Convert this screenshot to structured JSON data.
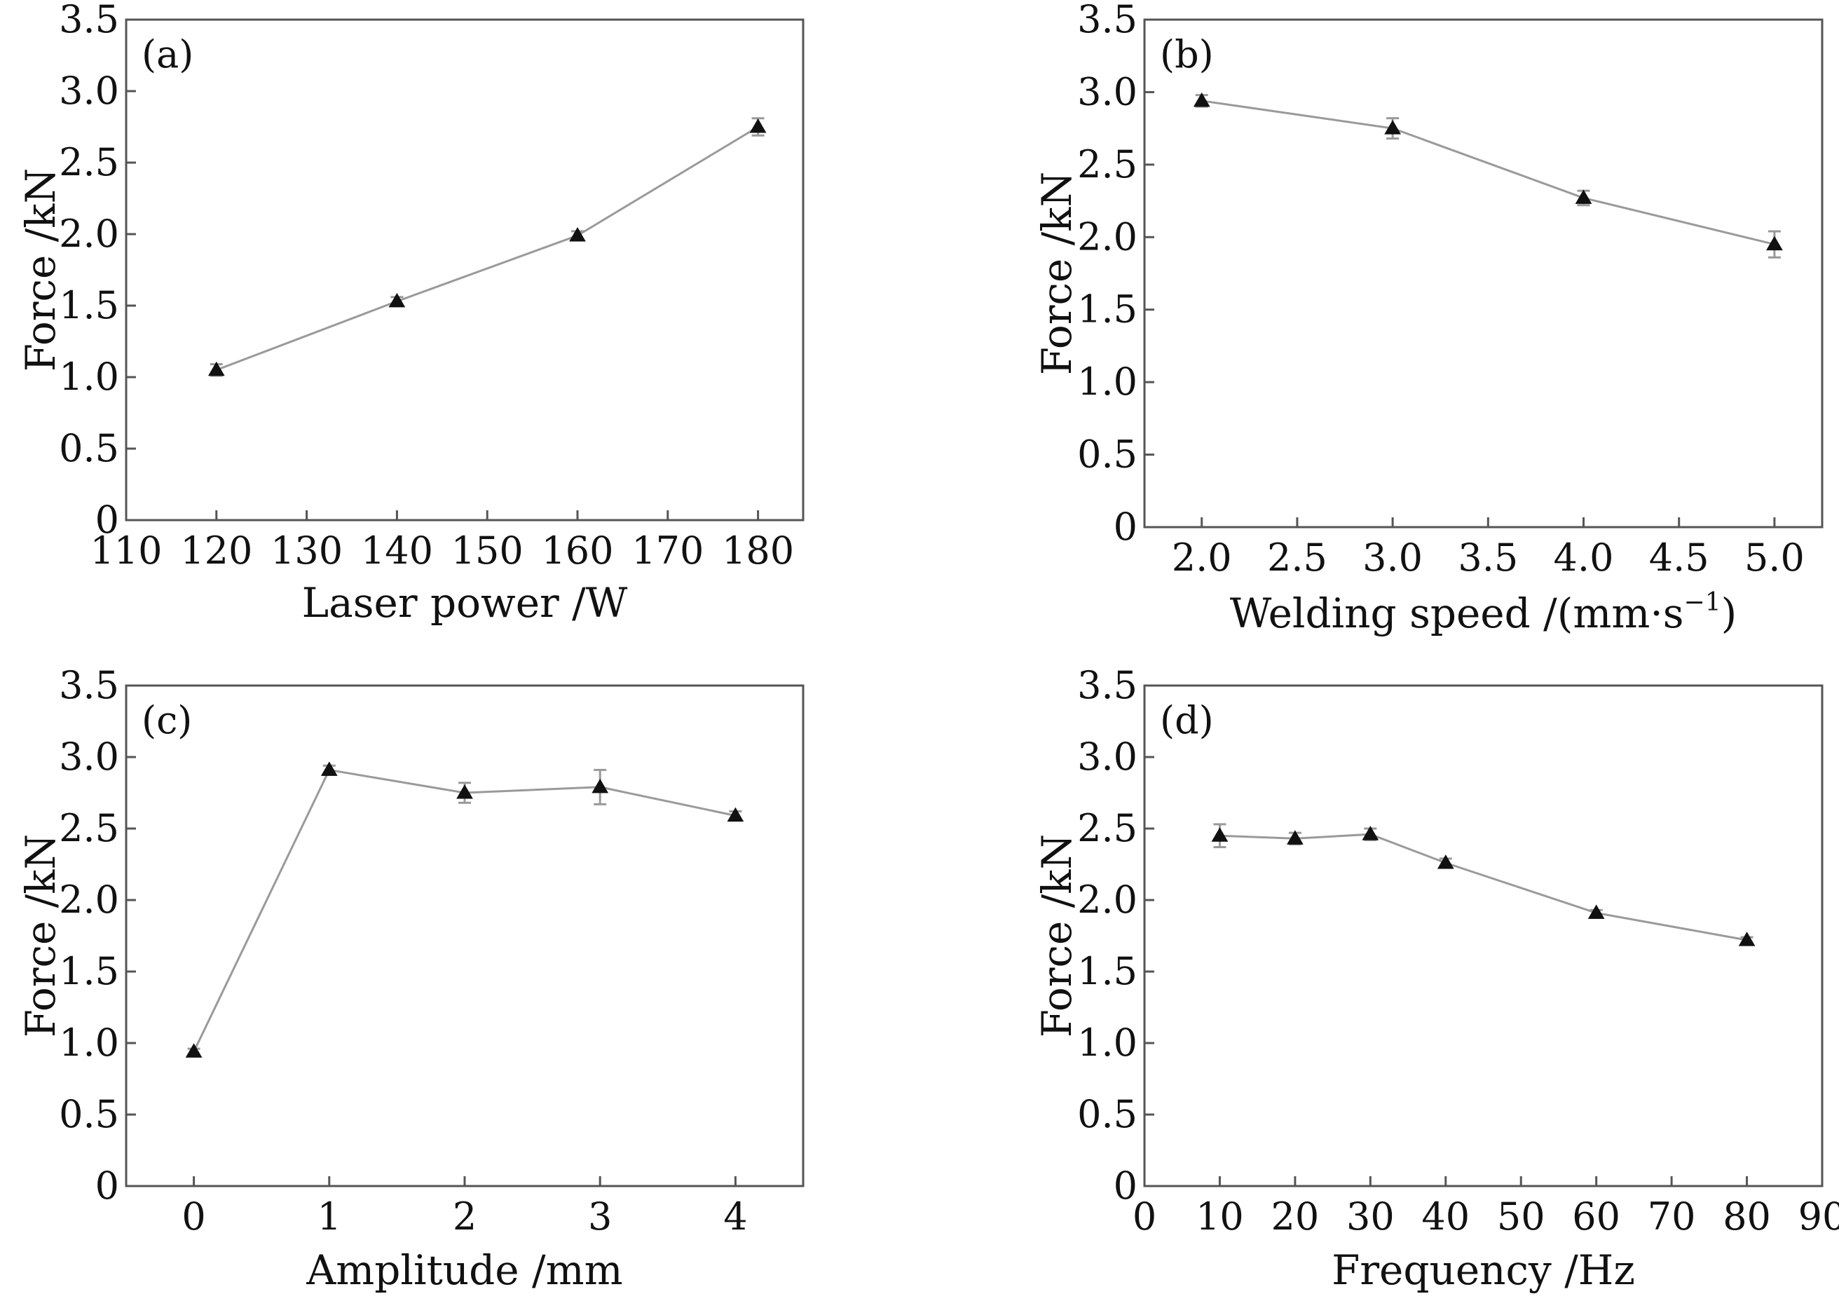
{
  "chart_data": [
    {
      "type": "line",
      "panel_label": "(a)",
      "xlabel": "Laser power /W",
      "ylabel": "Force /kN",
      "xlim": [
        110,
        185
      ],
      "ylim": [
        0,
        3.5
      ],
      "xticks": [
        110,
        120,
        130,
        140,
        150,
        160,
        170,
        180
      ],
      "xtick_labels": [
        "110",
        "120",
        "130",
        "140",
        "150",
        "160",
        "170",
        "180"
      ],
      "yticks": [
        0,
        0.5,
        1.0,
        1.5,
        2.0,
        2.5,
        3.0,
        3.5
      ],
      "ytick_labels": [
        "0",
        "0.5",
        "1.0",
        "1.5",
        "2.0",
        "2.5",
        "3.0",
        "3.5"
      ],
      "series": [
        {
          "x": [
            120,
            140,
            160,
            180
          ],
          "y": [
            1.05,
            1.53,
            1.99,
            2.75
          ],
          "error": [
            0.04,
            0.03,
            0.03,
            0.06
          ]
        }
      ]
    },
    {
      "type": "line",
      "panel_label": "(b)",
      "xlabel": "Welding speed /(mm·s",
      "xlabel_sup": "−1",
      "xlabel_end": ")",
      "ylabel": "Force /kN",
      "xlim": [
        1.7,
        5.25
      ],
      "ylim": [
        0,
        3.5
      ],
      "xticks": [
        2.0,
        2.5,
        3.0,
        3.5,
        4.0,
        4.5,
        5.0
      ],
      "xtick_labels": [
        "2.0",
        "2.5",
        "3.0",
        "3.5",
        "4.0",
        "4.5",
        "5.0"
      ],
      "yticks": [
        0,
        0.5,
        1.0,
        1.5,
        2.0,
        2.5,
        3.0,
        3.5
      ],
      "ytick_labels": [
        "0",
        "0.5",
        "1.0",
        "1.5",
        "2.0",
        "2.5",
        "3.0",
        "3.5"
      ],
      "series": [
        {
          "x": [
            2.0,
            3.0,
            4.0,
            5.0
          ],
          "y": [
            2.94,
            2.75,
            2.27,
            1.95
          ],
          "error": [
            0.04,
            0.07,
            0.05,
            0.09
          ]
        }
      ]
    },
    {
      "type": "line",
      "panel_label": "(c)",
      "xlabel": "Amplitude /mm",
      "ylabel": "Force /kN",
      "xlim": [
        -0.5,
        4.5
      ],
      "ylim": [
        0,
        3.5
      ],
      "xticks": [
        0,
        1,
        2,
        3,
        4
      ],
      "xtick_labels": [
        "0",
        "1",
        "2",
        "3",
        "4"
      ],
      "yticks": [
        0,
        0.5,
        1.0,
        1.5,
        2.0,
        2.5,
        3.0,
        3.5
      ],
      "ytick_labels": [
        "0",
        "0.5",
        "1.0",
        "1.5",
        "2.0",
        "2.5",
        "3.0",
        "3.5"
      ],
      "series": [
        {
          "x": [
            0,
            1,
            2,
            3,
            4
          ],
          "y": [
            0.94,
            2.91,
            2.75,
            2.79,
            2.59
          ],
          "error": [
            0.02,
            0.03,
            0.07,
            0.12,
            0.03
          ]
        }
      ]
    },
    {
      "type": "line",
      "panel_label": "(d)",
      "xlabel": "Frequency /Hz",
      "ylabel": "Force /kN",
      "xlim": [
        0,
        90
      ],
      "ylim": [
        0,
        3.5
      ],
      "xticks": [
        0,
        10,
        20,
        30,
        40,
        50,
        60,
        70,
        80,
        90
      ],
      "xtick_labels": [
        "0",
        "10",
        "20",
        "30",
        "40",
        "50",
        "60",
        "70",
        "80",
        "90"
      ],
      "yticks": [
        0,
        0.5,
        1.0,
        1.5,
        2.0,
        2.5,
        3.0,
        3.5
      ],
      "ytick_labels": [
        "0",
        "0.5",
        "1.0",
        "1.5",
        "2.0",
        "2.5",
        "3.0",
        "3.5"
      ],
      "series": [
        {
          "x": [
            10,
            20,
            30,
            40,
            60,
            80
          ],
          "y": [
            2.45,
            2.43,
            2.46,
            2.26,
            1.91,
            1.72
          ],
          "error": [
            0.08,
            0.04,
            0.04,
            0.03,
            0.02,
            0.02
          ]
        }
      ]
    }
  ]
}
